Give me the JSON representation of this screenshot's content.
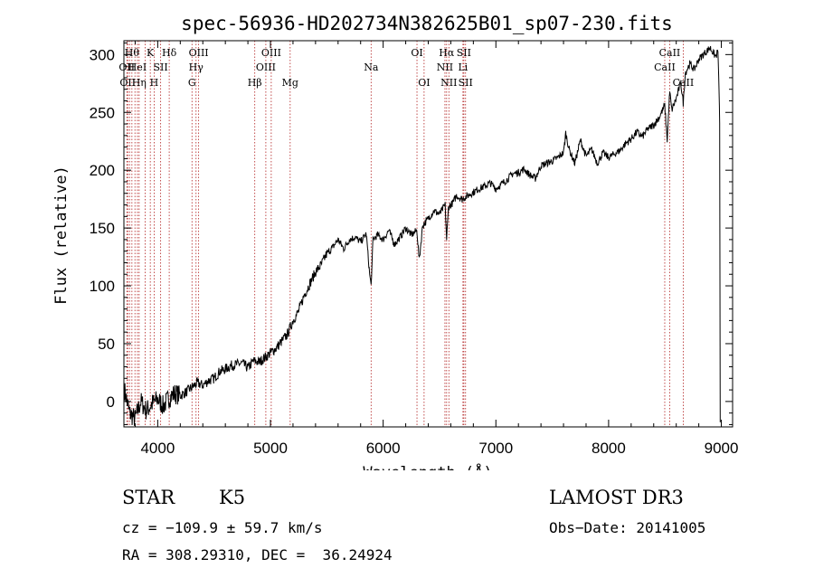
{
  "chart_data": {
    "type": "line",
    "title": "spec-56936-HD202734N382625B01_sp07-230.fits",
    "xlabel": "Wavelength (Å)",
    "ylabel": "Flux (relative)",
    "xlim": [
      3700,
      9100
    ],
    "ylim": [
      -22,
      312
    ],
    "xticks": [
      4000,
      5000,
      6000,
      7000,
      8000,
      9000
    ],
    "yticks": [
      0,
      50,
      100,
      150,
      200,
      250,
      300
    ],
    "xtick_labels": [
      "4000",
      "5000",
      "6000",
      "7000",
      "8000",
      "9000"
    ],
    "ytick_labels": [
      "0",
      "50",
      "100",
      "150",
      "200",
      "250",
      "300"
    ],
    "series": [
      {
        "name": "flux",
        "x": [
          3705,
          3750,
          3800,
          3850,
          3900,
          3950,
          4000,
          4050,
          4100,
          4150,
          4200,
          4250,
          4300,
          4350,
          4400,
          4450,
          4500,
          4550,
          4600,
          4650,
          4700,
          4750,
          4800,
          4850,
          4900,
          4950,
          5000,
          5050,
          5100,
          5150,
          5200,
          5250,
          5300,
          5350,
          5400,
          5450,
          5500,
          5550,
          5600,
          5650,
          5700,
          5750,
          5800,
          5850,
          5880,
          5893,
          5910,
          5950,
          6000,
          6050,
          6100,
          6150,
          6200,
          6250,
          6300,
          6320,
          6350,
          6400,
          6450,
          6500,
          6550,
          6563,
          6580,
          6620,
          6650,
          6700,
          6750,
          6800,
          6850,
          6900,
          6950,
          7000,
          7050,
          7100,
          7150,
          7200,
          7250,
          7300,
          7350,
          7400,
          7450,
          7500,
          7550,
          7600,
          7620,
          7650,
          7700,
          7750,
          7800,
          7850,
          7900,
          7950,
          8000,
          8050,
          8100,
          8150,
          8200,
          8250,
          8300,
          8350,
          8400,
          8450,
          8498,
          8520,
          8542,
          8560,
          8600,
          8640,
          8662,
          8680,
          8720,
          8760,
          8800,
          8850,
          8900,
          8950,
          8970,
          8980,
          8985,
          8990
        ],
        "y": [
          10,
          -10,
          -15,
          0,
          -8,
          -2,
          2,
          -4,
          3,
          7,
          5,
          8,
          12,
          16,
          14,
          18,
          20,
          26,
          28,
          31,
          32,
          33,
          29,
          35,
          34,
          38,
          42,
          46,
          52,
          58,
          70,
          78,
          92,
          102,
          112,
          118,
          128,
          133,
          140,
          132,
          140,
          142,
          138,
          145,
          110,
          100,
          140,
          144,
          140,
          148,
          136,
          142,
          150,
          144,
          148,
          122,
          152,
          158,
          165,
          162,
          170,
          140,
          168,
          172,
          178,
          175,
          178,
          181,
          184,
          186,
          189,
          184,
          188,
          192,
          197,
          198,
          201,
          196,
          193,
          204,
          206,
          208,
          211,
          215,
          232,
          218,
          206,
          226,
          212,
          218,
          206,
          215,
          211,
          214,
          217,
          223,
          227,
          233,
          229,
          236,
          239,
          246,
          256,
          226,
          268,
          252,
          262,
          276,
          258,
          284,
          292,
          287,
          296,
          301,
          306,
          298,
          303,
          270,
          240,
          -18
        ]
      }
    ],
    "annotations": {
      "lines": [
        {
          "x": 3726,
          "row1": "",
          "row2": "OII",
          "row3": ""
        },
        {
          "x": 3734,
          "row1": "",
          "row2": "",
          "row3": "OII"
        },
        {
          "x": 3750,
          "row1": "",
          "row2": "",
          "row3": ""
        },
        {
          "x": 3771,
          "row1": "Hθ",
          "row2": "",
          "row3": ""
        },
        {
          "x": 3798,
          "row1": "",
          "row2": "",
          "row3": ""
        },
        {
          "x": 3820,
          "row1": "",
          "row2": "HeI",
          "row3": ""
        },
        {
          "x": 3835,
          "row1": "",
          "row2": "",
          "row3": "Hη"
        },
        {
          "x": 3889,
          "row1": "",
          "row2": "",
          "row3": ""
        },
        {
          "x": 3934,
          "row1": "K",
          "row2": "",
          "row3": ""
        },
        {
          "x": 3968,
          "row1": "",
          "row2": "",
          "row3": "H"
        },
        {
          "x": 4026,
          "row1": "",
          "row2": "SII",
          "row3": ""
        },
        {
          "x": 4102,
          "row1": "Hδ",
          "row2": "",
          "row3": ""
        },
        {
          "x": 4304,
          "row1": "",
          "row2": "",
          "row3": "G"
        },
        {
          "x": 4340,
          "row1": "",
          "row2": "Hγ",
          "row3": ""
        },
        {
          "x": 4363,
          "row1": "OIII",
          "row2": "",
          "row3": ""
        },
        {
          "x": 4861,
          "row1": "",
          "row2": "",
          "row3": "Hβ"
        },
        {
          "x": 4959,
          "row1": "",
          "row2": "OIII",
          "row3": ""
        },
        {
          "x": 5007,
          "row1": "OIII",
          "row2": "",
          "row3": ""
        },
        {
          "x": 5175,
          "row1": "",
          "row2": "",
          "row3": "Mg"
        },
        {
          "x": 5893,
          "row1": "",
          "row2": "Na",
          "row3": ""
        },
        {
          "x": 6300,
          "row1": "OI",
          "row2": "",
          "row3": ""
        },
        {
          "x": 6363,
          "row1": "",
          "row2": "",
          "row3": "OI"
        },
        {
          "x": 6548,
          "row1": "",
          "row2": "NII",
          "row3": ""
        },
        {
          "x": 6563,
          "row1": "Hα",
          "row2": "",
          "row3": ""
        },
        {
          "x": 6583,
          "row1": "",
          "row2": "",
          "row3": "NII"
        },
        {
          "x": 6708,
          "row1": "",
          "row2": "Li",
          "row3": ""
        },
        {
          "x": 6716,
          "row1": "SII",
          "row2": "",
          "row3": ""
        },
        {
          "x": 6731,
          "row1": "",
          "row2": "",
          "row3": "SII"
        },
        {
          "x": 8498,
          "row1": "",
          "row2": "CaII",
          "row3": ""
        },
        {
          "x": 8542,
          "row1": "CaII",
          "row2": "",
          "row3": ""
        },
        {
          "x": 8662,
          "row1": "",
          "row2": "",
          "row3": "CaII"
        }
      ]
    },
    "line_color": "#000000",
    "marker_color": "#b22222"
  },
  "info": {
    "object_type": "STAR",
    "subclass": "K5",
    "survey": "LAMOST DR3",
    "cz": "cz = −109.9 ± 59.7 km/s",
    "obs_date": "Obs−Date: 20141005",
    "coords": "RA = 308.29310, DEC =  36.24924"
  }
}
